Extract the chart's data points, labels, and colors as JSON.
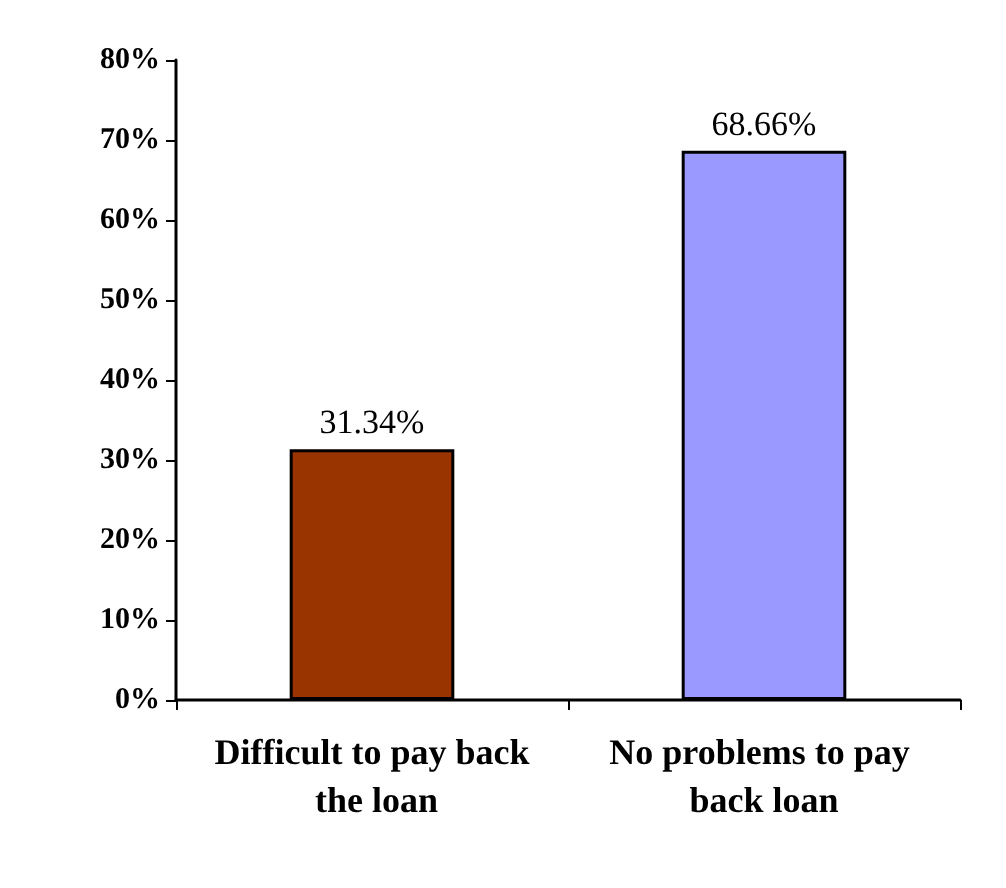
{
  "chart_data": {
    "type": "bar",
    "categories": [
      "Difficult to pay back the loan",
      "No problems to pay back loan"
    ],
    "values": [
      31.34,
      68.66
    ],
    "colors": [
      "#993300",
      "#9999ff"
    ],
    "value_labels": [
      "31.34%",
      "68.66%"
    ],
    "ylim": [
      0,
      80
    ],
    "yticks": [
      {
        "value": 0,
        "label": "0%"
      },
      {
        "value": 10,
        "label": "10%"
      },
      {
        "value": 20,
        "label": "20%"
      },
      {
        "value": 30,
        "label": "30%"
      },
      {
        "value": 40,
        "label": "40%"
      },
      {
        "value": 50,
        "label": "50%"
      },
      {
        "value": 60,
        "label": "60%"
      },
      {
        "value": 70,
        "label": "70%"
      },
      {
        "value": 80,
        "label": "80%"
      }
    ],
    "grid": false
  }
}
